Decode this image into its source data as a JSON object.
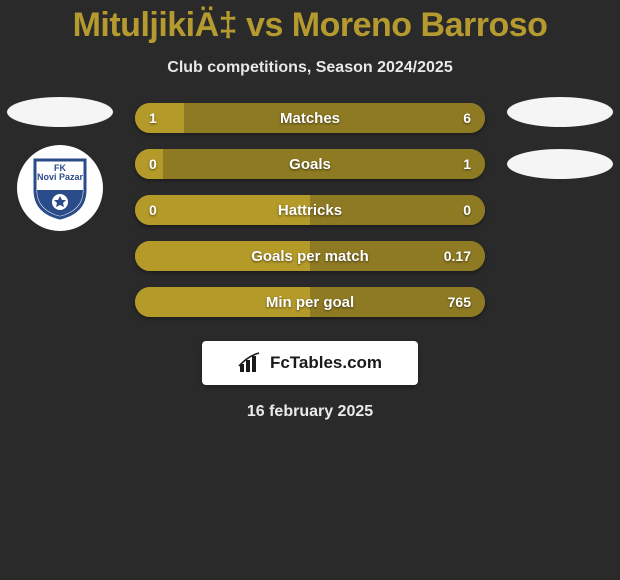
{
  "title_color": "#b59a2f",
  "title": "MituljikiÄ‡ vs Moreno Barroso",
  "subtitle": "Club competitions, Season 2024/2025",
  "colors": {
    "left_fill": "#b49a29",
    "right_fill": "#8e7a22",
    "ellipse": "#f3f3f3",
    "background": "#2a2a2a"
  },
  "bar_style": {
    "height": 30,
    "radius": 15,
    "label_fontsize": 15,
    "value_fontsize": 14
  },
  "club_left": {
    "name_line1": "FK",
    "name_line2": "Novi Pazar",
    "shield_fill": "#ffffff",
    "shield_border": "#2b4c8b",
    "shield_lower": "#2b4c8b"
  },
  "bars": [
    {
      "label": "Matches",
      "left": "1",
      "right": "6",
      "left_pct": 14,
      "right_pct": 86
    },
    {
      "label": "Goals",
      "left": "0",
      "right": "1",
      "left_pct": 8,
      "right_pct": 92
    },
    {
      "label": "Hattricks",
      "left": "0",
      "right": "0",
      "left_pct": 50,
      "right_pct": 50
    },
    {
      "label": "Goals per match",
      "left": "",
      "right": "0.17",
      "left_pct": 50,
      "right_pct": 50
    },
    {
      "label": "Min per goal",
      "left": "",
      "right": "765",
      "left_pct": 50,
      "right_pct": 50
    }
  ],
  "logo_text": "FcTables.com",
  "date": "16 february 2025"
}
